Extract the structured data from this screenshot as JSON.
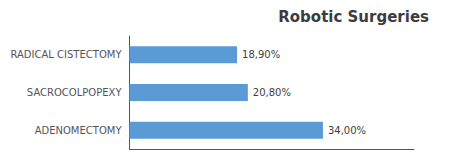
{
  "chart_data": {
    "type": "bar",
    "orientation": "horizontal",
    "title": "Robotic Surgeries",
    "categories": [
      "ADENOMECTOMY",
      "SACROCOLPOPEXY",
      "RADICAL CISTECTOMY"
    ],
    "values": [
      34.0,
      20.8,
      18.9
    ],
    "value_labels": [
      "34,00%",
      "20,80%",
      "18,90%"
    ],
    "data_labels": true,
    "color": "#5B9BD5",
    "xlim": [
      0,
      50
    ],
    "grid": false,
    "tick_labels": "y"
  }
}
